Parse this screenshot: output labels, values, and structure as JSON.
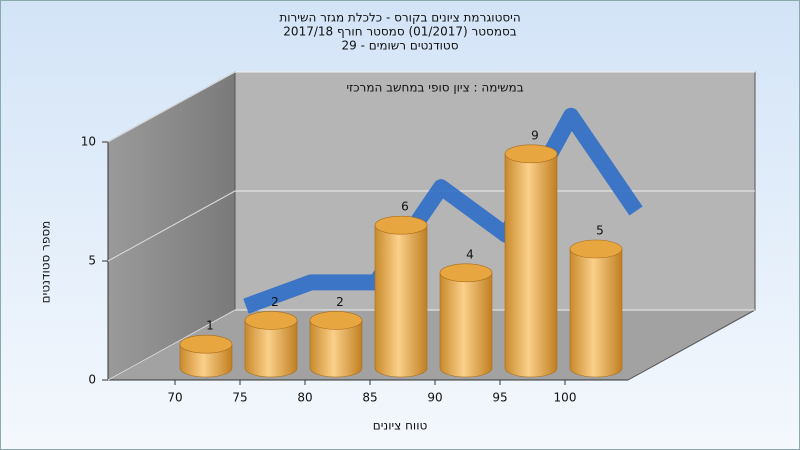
{
  "chart_data": {
    "type": "bar",
    "title": [
      "היסטוגרמת ציונים בקורס - כלכלת מגזר השירות",
      "בסמסטר  (01/2017)  סמסטר חורף 2017/18",
      "סטודנטים רשומים - 29"
    ],
    "subtitle": "במשימה : ציון סופי במחשב המרכזי",
    "x_label": "טווח ציונים",
    "y_label": "מספר סטודנטים",
    "categories": [
      70,
      75,
      80,
      85,
      90,
      95,
      100
    ],
    "values": [
      1,
      2,
      2,
      6,
      4,
      9,
      5
    ],
    "color": "#e8a640",
    "line_color": "#2f6ec8",
    "ylim": [
      0,
      10
    ],
    "yticks": [
      0,
      5,
      10
    ],
    "grid": true
  }
}
